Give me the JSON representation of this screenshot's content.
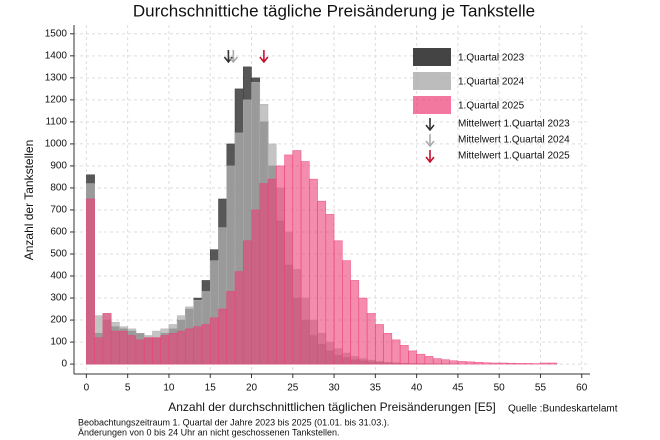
{
  "chart_data": {
    "type": "histogram",
    "title": "Durchschnittiche tägliche Preisänderung je Tankstelle",
    "x_label": "Anzahl der durchschnittlichen täglichen Preisänderungen [E5]",
    "y_label": "Anzahl der Tankstellen",
    "source": "Quelle :Bundeskartelamt",
    "notes": [
      "Beobachtungszeitraum 1. Quartal der Jahre 2023 bis 2025 (01.01. bis 31.03.).",
      "Änderungen von 0 bis 24 Uhr an nicht geschossenen Tankstellen."
    ],
    "bins": [
      0,
      1,
      2,
      3,
      4,
      5,
      6,
      7,
      8,
      9,
      10,
      11,
      12,
      13,
      14,
      15,
      16,
      17,
      18,
      19,
      20,
      21,
      22,
      23,
      24,
      25,
      26,
      27,
      28,
      29,
      30,
      31,
      32,
      33,
      34,
      35,
      36,
      37,
      38,
      39,
      40,
      41,
      42,
      43,
      44,
      45,
      46,
      47,
      48,
      49,
      50,
      51,
      52,
      53,
      54,
      55,
      56,
      57,
      58,
      59,
      60
    ],
    "series": [
      {
        "name": "1.Quartal 2023",
        "color": "#3a3a3a",
        "opacity": 0.85,
        "mean": 17.2,
        "mean_name": "Mittelwert 1.Quartal 2023",
        "mean_color": "#333333",
        "values": [
          860,
          140,
          200,
          170,
          160,
          150,
          140,
          120,
          120,
          140,
          160,
          200,
          250,
          300,
          380,
          520,
          750,
          1000,
          1250,
          1350,
          1300,
          1100,
          900,
          650,
          450,
          300,
          200,
          130,
          90,
          60,
          40,
          30,
          20,
          15,
          10,
          8,
          5,
          4,
          3,
          2,
          2,
          1,
          1,
          1,
          0,
          0,
          0,
          0,
          0,
          0,
          0,
          0,
          0,
          0,
          0,
          0,
          0,
          0,
          0,
          0
        ]
      },
      {
        "name": "1.Quartal 2024",
        "color": "#b0b0b0",
        "opacity": 0.75,
        "mean": 17.8,
        "mean_name": "Mittelwert 1.Quartal 2024",
        "mean_color": "#aaaaaa",
        "values": [
          820,
          220,
          230,
          190,
          170,
          160,
          140,
          130,
          150,
          160,
          180,
          220,
          260,
          290,
          330,
          470,
          620,
          900,
          1050,
          1200,
          1280,
          1180,
          1000,
          800,
          600,
          430,
          300,
          200,
          140,
          100,
          70,
          50,
          35,
          25,
          18,
          12,
          8,
          6,
          4,
          3,
          2,
          2,
          1,
          1,
          1,
          0,
          0,
          0,
          0,
          0,
          0,
          0,
          0,
          0,
          0,
          0,
          0,
          0,
          0,
          0
        ]
      },
      {
        "name": "1.Quartal 2025",
        "color": "#ec3f77",
        "opacity": 0.6,
        "mean": 21.5,
        "mean_name": "Mittelwert 1.Quartal 2025",
        "mean_color": "#c8102e",
        "values": [
          750,
          120,
          230,
          150,
          150,
          130,
          110,
          120,
          120,
          130,
          140,
          150,
          160,
          170,
          180,
          210,
          250,
          330,
          420,
          560,
          700,
          820,
          840,
          900,
          950,
          970,
          920,
          840,
          740,
          680,
          560,
          470,
          380,
          300,
          230,
          180,
          140,
          110,
          85,
          60,
          45,
          35,
          25,
          20,
          15,
          12,
          10,
          8,
          6,
          5,
          5,
          4,
          3,
          3,
          2,
          5,
          5,
          0,
          0,
          0
        ]
      }
    ],
    "xlim": [
      -1.5,
      61
    ],
    "ylim": [
      -45,
      1540
    ],
    "xticks": [
      0,
      5,
      10,
      15,
      20,
      25,
      30,
      35,
      40,
      45,
      50,
      55,
      60
    ],
    "yticks": [
      0,
      100,
      200,
      300,
      400,
      500,
      600,
      700,
      800,
      900,
      1000,
      1100,
      1200,
      1300,
      1400,
      1500
    ],
    "grid": true
  }
}
